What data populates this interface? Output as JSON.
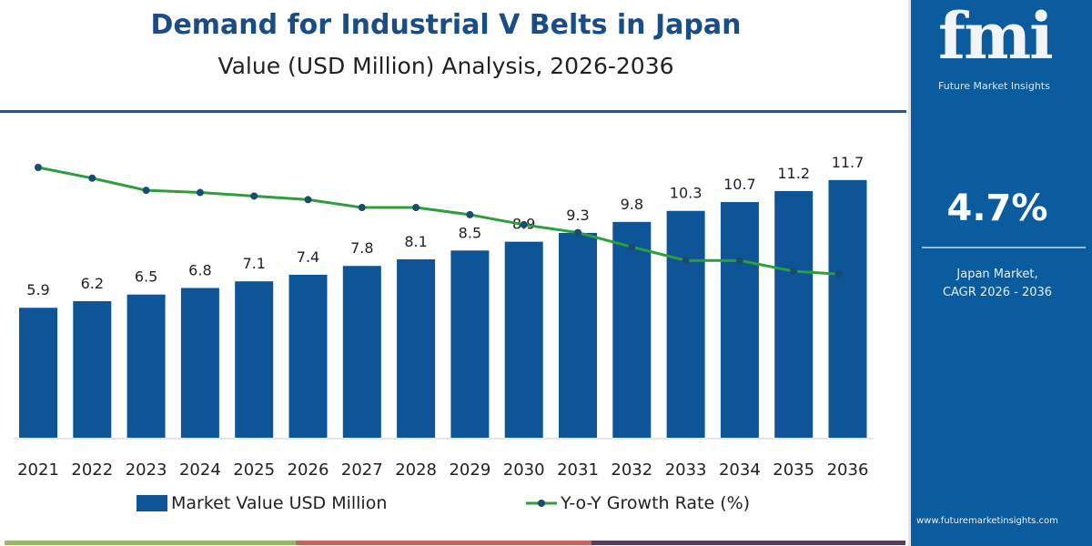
{
  "header": {
    "title": "Demand for Industrial V Belts  in Japan",
    "subtitle": "Value (USD Million) Analysis, 2026-2036"
  },
  "panel": {
    "logo_text": "fmi",
    "logo_subtitle": "Future Market Insights",
    "cagr_value": "4.7%",
    "cagr_label_line1": "Japan Market,",
    "cagr_label_line2": "CAGR 2026 - 2036",
    "url": "www.futuremarketinsights.com"
  },
  "colors": {
    "bar": "#0d5596",
    "line": "#2e9e3a",
    "marker": "#1a4c6e",
    "panel": "#0b5c9f",
    "strip": [
      "#9bb56a",
      "#c0665a",
      "#5a3d5c"
    ]
  },
  "chart_data": {
    "type": "bar+line",
    "categories": [
      "2021",
      "2022",
      "2023",
      "2024",
      "2025",
      "2026",
      "2027",
      "2028",
      "2029",
      "2030",
      "2031",
      "2032",
      "2033",
      "2034",
      "2035",
      "2036"
    ],
    "series": [
      {
        "name": "Market Value USD Million",
        "type": "bar",
        "values": [
          5.9,
          6.2,
          6.5,
          6.8,
          7.1,
          7.4,
          7.8,
          8.1,
          8.5,
          8.9,
          9.3,
          9.8,
          10.3,
          10.7,
          11.2,
          11.7
        ],
        "labels": [
          "5.9",
          "6.2",
          "6.5",
          "6.8",
          "7.1",
          "7.4",
          "7.8",
          "8.1",
          "8.5",
          "8.9",
          "9.3",
          "9.8",
          "10.3",
          "10.7",
          "11.2",
          "11.7"
        ]
      },
      {
        "name": "Y-o-Y Growth Rate (%)",
        "type": "line",
        "values": [
          5.5,
          5.35,
          5.18,
          5.15,
          5.1,
          5.05,
          4.94,
          4.94,
          4.84,
          4.7,
          4.59,
          4.39,
          4.2,
          4.2,
          4.05,
          4.01
        ]
      }
    ],
    "ylim": [
      0,
      12
    ],
    "grid": false,
    "legend": "bottom"
  }
}
